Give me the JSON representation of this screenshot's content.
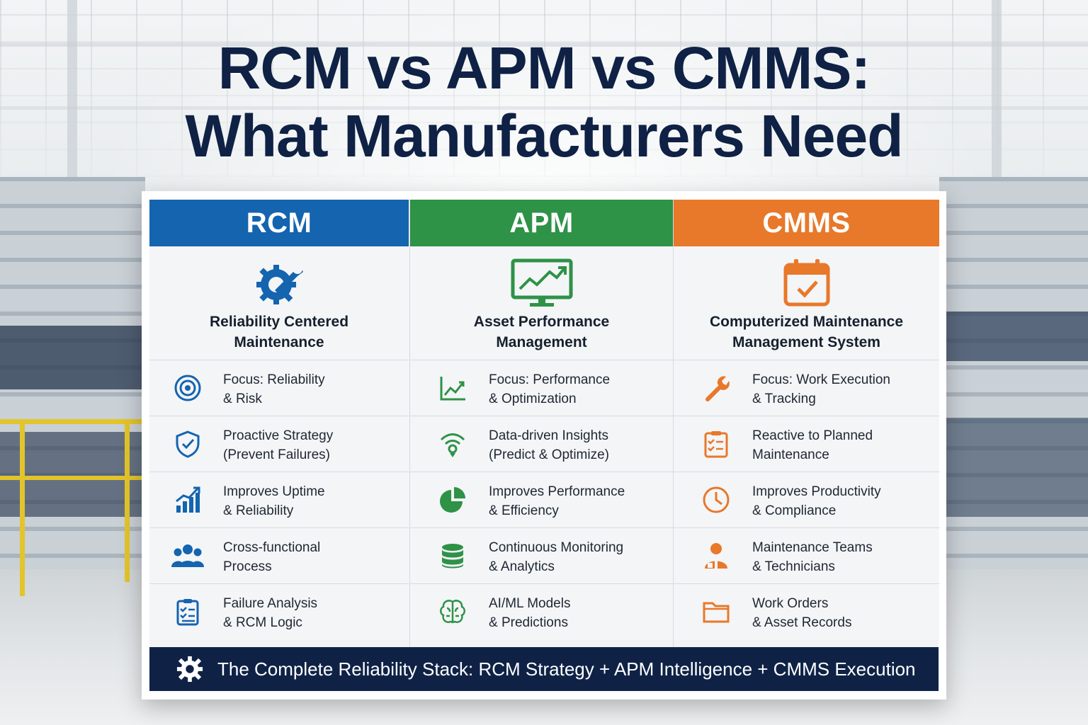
{
  "title": {
    "line1": "RCM vs APM vs CMMS:",
    "line2": "What Manufacturers Need"
  },
  "colors": {
    "rcm": "#1464b0",
    "apm": "#2e9247",
    "cmms": "#e8782a",
    "footer": "#0f2246",
    "title": "#0f2144"
  },
  "columns": [
    {
      "name": "RCM",
      "icon": "gear-wrench-icon",
      "subtitle": "Reliability Centered\nMaintenance",
      "rows": [
        {
          "icon": "target-icon",
          "text": "Focus: Reliability\n& Risk"
        },
        {
          "icon": "shield-check-icon",
          "text": "Proactive Strategy\n(Prevent Failures)"
        },
        {
          "icon": "growth-chart-icon",
          "text": "Improves Uptime\n& Reliability"
        },
        {
          "icon": "team-icon",
          "text": "Cross-functional\nProcess"
        },
        {
          "icon": "checklist-icon",
          "text": "Failure Analysis\n& RCM Logic"
        }
      ]
    },
    {
      "name": "APM",
      "icon": "monitor-chart-icon",
      "subtitle": "Asset Performance\nManagement",
      "rows": [
        {
          "icon": "line-chart-icon",
          "text": "Focus: Performance\n& Optimization"
        },
        {
          "icon": "wireless-sensor-icon",
          "text": "Data-driven Insights\n(Predict & Optimize)"
        },
        {
          "icon": "pie-chart-icon",
          "text": "Improves Performance\n& Efficiency"
        },
        {
          "icon": "database-icon",
          "text": "Continuous Monitoring\n& Analytics"
        },
        {
          "icon": "brain-icon",
          "text": "AI/ML Models\n& Predictions"
        }
      ]
    },
    {
      "name": "CMMS",
      "icon": "calendar-check-icon",
      "subtitle": "Computerized Maintenance\nManagement System",
      "rows": [
        {
          "icon": "wrench-icon",
          "text": "Focus: Work Execution\n& Tracking"
        },
        {
          "icon": "clipboard-icon",
          "text": "Reactive to Planned\nMaintenance"
        },
        {
          "icon": "clock-icon",
          "text": "Improves Productivity\n& Compliance"
        },
        {
          "icon": "technician-icon",
          "text": "Maintenance Teams\n& Technicians"
        },
        {
          "icon": "folder-icon",
          "text": "Work Orders\n& Asset Records"
        }
      ]
    }
  ],
  "footer": {
    "icon": "gear-icon",
    "text": "The Complete Reliability Stack: RCM Strategy + APM Intelligence + CMMS Execution"
  }
}
